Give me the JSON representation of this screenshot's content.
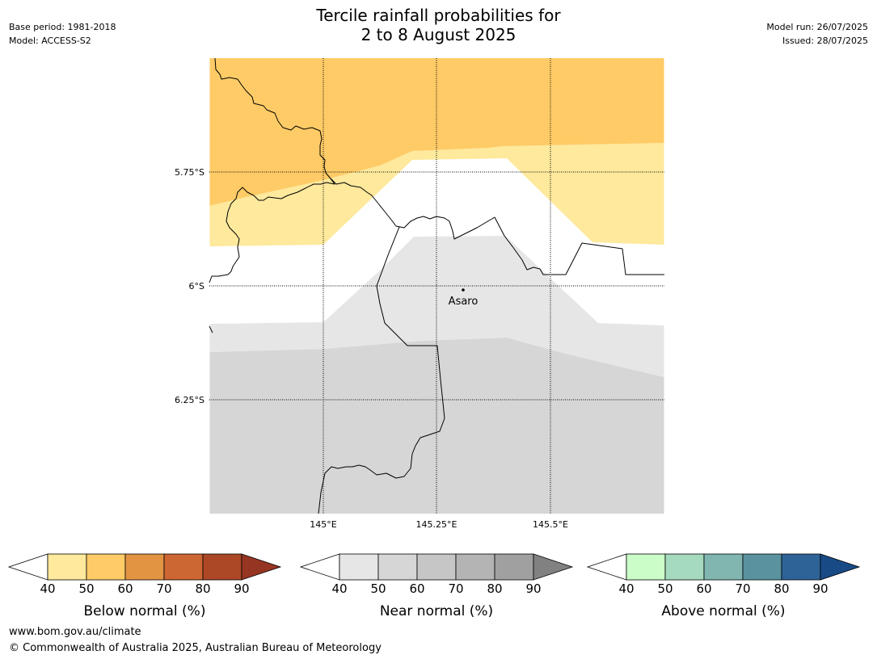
{
  "title": {
    "line1": "Tercile rainfall probabilities for",
    "line2": "2 to 8 August 2025"
  },
  "meta_left": {
    "base_period": "Base period: 1981-2018",
    "model": "Model: ACCESS-S2"
  },
  "meta_right": {
    "model_run": "Model run: 26/07/2025",
    "issued": "Issued: 28/07/2025"
  },
  "map": {
    "lat_labels": [
      "5.75°S",
      "6°S",
      "6.25°S"
    ],
    "lon_labels": [
      "145°E",
      "145.25°E",
      "145.5°E"
    ],
    "place": "Asaro",
    "colors": {
      "below_40": "#fee99c",
      "below_50": "#fecb66",
      "near_40": "#e6e6e6",
      "near_50": "#d6d6d6"
    }
  },
  "legends": [
    {
      "title": "Below normal (%)",
      "ticks": [
        "40",
        "50",
        "60",
        "70",
        "80",
        "90"
      ],
      "under_color": "#ffffff",
      "colors": [
        "#fee99c",
        "#fecb66",
        "#e29443",
        "#cc6633",
        "#ac4825"
      ],
      "over_color": "#973523"
    },
    {
      "title": "Near normal (%)",
      "ticks": [
        "40",
        "50",
        "60",
        "70",
        "80",
        "90"
      ],
      "under_color": "#ffffff",
      "colors": [
        "#e6e6e6",
        "#d6d6d6",
        "#c6c6c6",
        "#b4b4b4",
        "#a0a0a0"
      ],
      "over_color": "#818181"
    },
    {
      "title": "Above normal (%)",
      "ticks": [
        "40",
        "50",
        "60",
        "70",
        "80",
        "90"
      ],
      "under_color": "#ffffff",
      "colors": [
        "#cbfdc9",
        "#a5dabe",
        "#81b6b0",
        "#5a929f",
        "#2e6397"
      ],
      "over_color": "#184b86"
    }
  ],
  "footer": {
    "url": "www.bom.gov.au/climate",
    "copyright": "© Commonwealth of Australia 2025, Australian Bureau of Meteorology"
  }
}
